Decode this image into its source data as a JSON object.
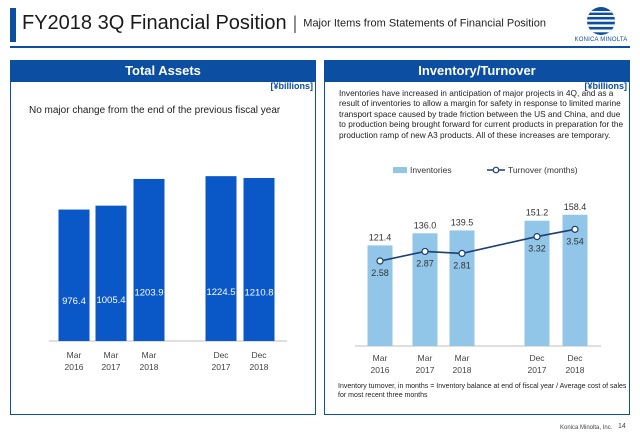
{
  "header": {
    "title": "FY2018 3Q Financial Position",
    "separator": "|",
    "subtitle": "Major Items from Statements of Financial Position",
    "logo_text": "KONICA MINOLTA"
  },
  "left_panel": {
    "heading": "Total Assets",
    "unit": "[¥billions]",
    "note": "No major change from the end of the previous fiscal year"
  },
  "right_panel": {
    "heading": "Inventory/Turnover",
    "unit": "[¥billions]",
    "note": "Inventories have increased in anticipation of major projects in 4Q, and as a result of inventories to allow a margin for safety in response to limited marine transport space caused by trade friction between the US and China, and due to production being brought forward for current products in preparation for the production ramp of new A3 products. All of these increases are temporary.",
    "footnote": "Inventory turnover, in months = Inventory balance at end of fiscal year / Average cost of sales for most recent three months"
  },
  "footer": {
    "company": "Konica Minolta, Inc.",
    "page": "14"
  },
  "colors": {
    "brand": "#0b4ea2",
    "assets_bar": "#0a57c8",
    "inventory_bar": "#92c6e8",
    "turnover_line": "#1d3f74"
  },
  "chart_data": [
    {
      "type": "bar",
      "categories": [
        [
          "Mar",
          "2016"
        ],
        [
          "Mar",
          "2017"
        ],
        [
          "Mar",
          "2018"
        ],
        [
          "Dec",
          "2017"
        ],
        [
          "Dec",
          "2018"
        ]
      ],
      "values": [
        976.4,
        1005.4,
        1203.9,
        1224.5,
        1210.8
      ],
      "value_labels": [
        "976.4",
        "1005.4",
        "1203.9",
        "1224.5",
        "1210.8"
      ],
      "ylim": [
        0,
        1300
      ],
      "grid": false,
      "legend": "none"
    },
    {
      "type": "bar",
      "categories": [
        [
          "Mar",
          "2016"
        ],
        [
          "Mar",
          "2017"
        ],
        [
          "Mar",
          "2018"
        ],
        [
          "Dec",
          "2017"
        ],
        [
          "Dec",
          "2018"
        ]
      ],
      "series": [
        {
          "name": "Inventories",
          "type": "bar",
          "values": [
            121.4,
            136.0,
            139.5,
            151.2,
            158.4
          ],
          "labels": [
            "121.4",
            "136.0",
            "139.5",
            "151.2",
            "158.4"
          ]
        },
        {
          "name": "Turnover (months)",
          "type": "line",
          "values": [
            2.58,
            2.87,
            2.81,
            3.32,
            3.54
          ],
          "labels": [
            "2.58",
            "2.87",
            "2.81",
            "3.32",
            "3.54"
          ]
        }
      ],
      "ylim": [
        0,
        175
      ],
      "ylim_secondary": [
        0,
        4.4
      ],
      "grid": false,
      "legend": "top"
    }
  ]
}
